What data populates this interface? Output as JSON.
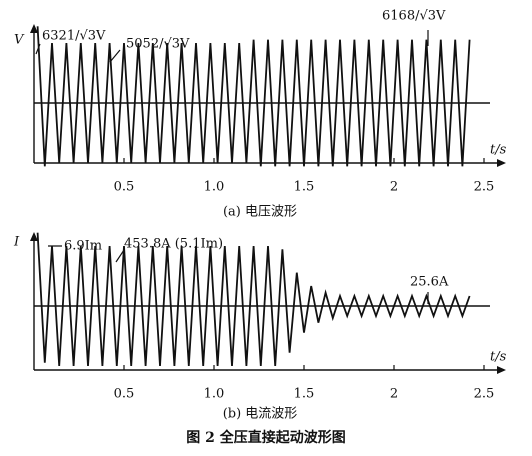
{
  "chart_data": [
    {
      "type": "line",
      "ylabel": "V",
      "xlabel": "t/s",
      "caption": "(a) 电压波形",
      "xlim": [
        0,
        2.5
      ],
      "xticks": [
        0.5,
        {
          "value": 1,
          "label": "1.0"
        },
        1.5,
        2,
        2.5
      ],
      "ylim": [
        -1.2,
        1.2
      ],
      "annotations": [
        "6321/√3V",
        "5052/√3V",
        "6168/√3V"
      ],
      "x": [
        0.02,
        0.06,
        0.1,
        0.14,
        0.18,
        0.22,
        0.26,
        0.3,
        0.34,
        0.38,
        0.42,
        0.46,
        0.5,
        0.54,
        0.58,
        0.62,
        0.66,
        0.7,
        0.74,
        0.78,
        0.82,
        0.86,
        0.9,
        0.94,
        0.98,
        1.02,
        1.06,
        1.1,
        1.14,
        1.18,
        1.22,
        1.26,
        1.3,
        1.34,
        1.38,
        1.42,
        1.46,
        1.5,
        1.54,
        1.58,
        1.62,
        1.66,
        1.7,
        1.74,
        1.78,
        1.82,
        1.86,
        1.9,
        1.94,
        1.98,
        2.02,
        2.06,
        2.1,
        2.14,
        2.18,
        2.22,
        2.26,
        2.3,
        2.34,
        2.38,
        2.42
      ],
      "values": [
        1.15,
        -0.95,
        0.9,
        -0.9,
        0.9,
        -0.9,
        0.9,
        -0.9,
        0.9,
        -0.9,
        0.9,
        -0.9,
        0.9,
        -0.9,
        0.9,
        -0.9,
        0.9,
        -0.9,
        0.9,
        -0.9,
        0.9,
        -0.9,
        0.9,
        -0.9,
        0.9,
        -0.9,
        0.9,
        -0.9,
        0.9,
        -0.9,
        0.95,
        -0.95,
        0.95,
        -0.95,
        0.95,
        -0.95,
        0.95,
        -0.95,
        0.95,
        -0.95,
        0.95,
        -0.95,
        0.95,
        -0.95,
        0.95,
        -0.95,
        0.95,
        -0.95,
        0.95,
        -0.95,
        0.95,
        -0.95,
        0.95,
        -0.95,
        0.95,
        -0.95,
        0.95,
        -0.95,
        0.95,
        -0.95,
        0.95
      ],
      "color": "#111111"
    },
    {
      "type": "line",
      "ylabel": "I",
      "xlabel": "t/s",
      "caption": "(b) 电流波形",
      "xlim": [
        0,
        2.5
      ],
      "xticks": [
        0.5,
        {
          "value": 1,
          "label": "1.0"
        },
        1.5,
        2,
        2.5
      ],
      "ylim": [
        -1.2,
        1.2
      ],
      "annotations": [
        "6.9Im",
        "453.8A (5.1Im)",
        "25.6A"
      ],
      "x": [
        0.02,
        0.06,
        0.1,
        0.14,
        0.18,
        0.22,
        0.26,
        0.3,
        0.34,
        0.38,
        0.42,
        0.46,
        0.5,
        0.54,
        0.58,
        0.62,
        0.66,
        0.7,
        0.74,
        0.78,
        0.82,
        0.86,
        0.9,
        0.94,
        0.98,
        1.02,
        1.06,
        1.1,
        1.14,
        1.18,
        1.22,
        1.26,
        1.3,
        1.34,
        1.38,
        1.42,
        1.46,
        1.5,
        1.54,
        1.58,
        1.62,
        1.66,
        1.7,
        1.74,
        1.78,
        1.82,
        1.86,
        1.9,
        1.94,
        1.98,
        2.02,
        2.06,
        2.1,
        2.14,
        2.18,
        2.22,
        2.26,
        2.3,
        2.34,
        2.38,
        2.42
      ],
      "values": [
        1.1,
        -0.85,
        0.9,
        -0.9,
        0.9,
        -0.9,
        0.9,
        -0.9,
        0.9,
        -0.9,
        0.9,
        -0.9,
        0.9,
        -0.9,
        0.9,
        -0.9,
        0.9,
        -0.9,
        0.9,
        -0.9,
        0.9,
        -0.9,
        0.9,
        -0.9,
        0.9,
        -0.9,
        0.9,
        -0.9,
        0.9,
        -0.9,
        0.9,
        -0.9,
        0.9,
        -0.9,
        0.85,
        -0.7,
        0.5,
        -0.4,
        0.3,
        -0.25,
        0.2,
        -0.18,
        0.15,
        -0.15,
        0.15,
        -0.15,
        0.15,
        -0.15,
        0.15,
        -0.15,
        0.15,
        -0.15,
        0.15,
        -0.15,
        0.15,
        -0.15,
        0.15,
        -0.15,
        0.15,
        -0.15,
        0.15
      ],
      "color": "#111111"
    }
  ],
  "figure_caption": "图 2  全压直接起动波形图"
}
